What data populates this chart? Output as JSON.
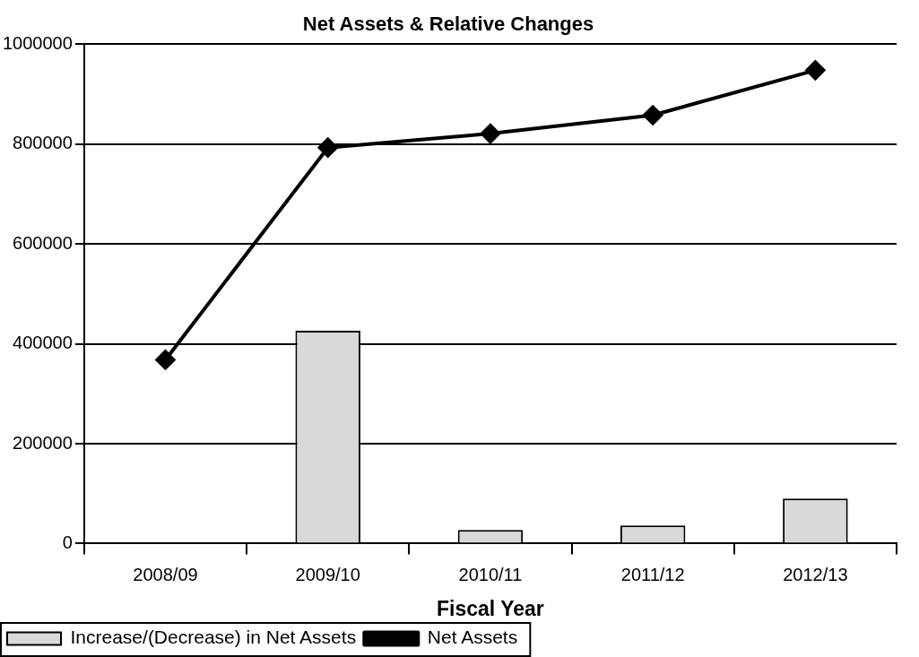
{
  "chart_data": {
    "type": "bar",
    "title": "Net Assets & Relative Changes",
    "xlabel": "Fiscal Year",
    "categories": [
      "2008/09",
      "2009/10",
      "2010/11",
      "2011/12",
      "2012/13"
    ],
    "series": [
      {
        "name": "Increase/(Decrease) in Net Assets",
        "color": "#d9d9d9",
        "values": [
          null,
          426000,
          27000,
          36000,
          90000
        ]
      },
      {
        "name": "Net Assets",
        "type": "line",
        "color": "#000000",
        "values": [
          368000,
          793000,
          821000,
          858000,
          948000
        ]
      }
    ],
    "ylim": [
      0,
      1000000
    ],
    "yticks": [
      0,
      200000,
      400000,
      600000,
      800000,
      1000000
    ],
    "grid": "y",
    "legend": "bottom",
    "marker": "diamond",
    "line_style": "solid"
  }
}
